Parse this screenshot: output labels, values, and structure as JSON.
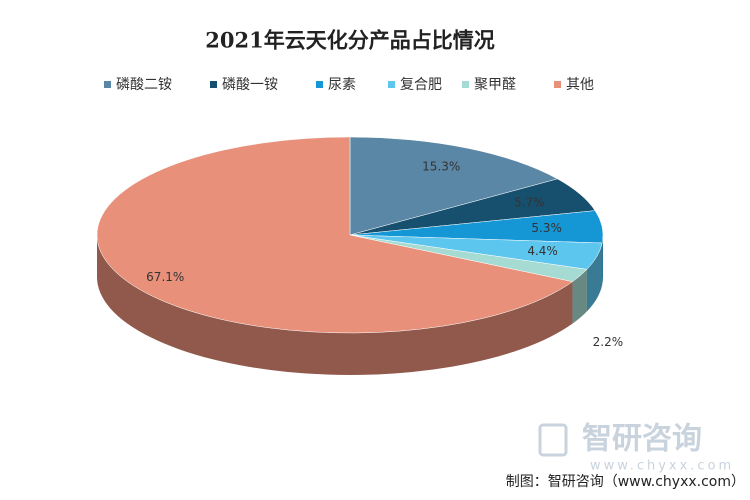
{
  "chart_data": {
    "type": "pie3d",
    "title": "2021年云天化分产品占比情况",
    "categories": [
      "磷酸二铵",
      "磷酸一铵",
      "尿素",
      "复合肥",
      "聚甲醛",
      "其他"
    ],
    "values": [
      15.3,
      5.7,
      5.3,
      4.4,
      2.2,
      67.1
    ],
    "value_labels": [
      "15.3%",
      "5.7%",
      "5.3%",
      "4.4%",
      "2.2%",
      "67.1%"
    ],
    "colors": [
      "#5b87a6",
      "#17506f",
      "#1597d5",
      "#5cc6ee",
      "#a6dbd3",
      "#e8907a"
    ],
    "legend": "top",
    "source": "制图：智研咨询（www.chyxx.com）",
    "watermark": "智研咨询",
    "watermark_url": "www.chyxx.com"
  }
}
